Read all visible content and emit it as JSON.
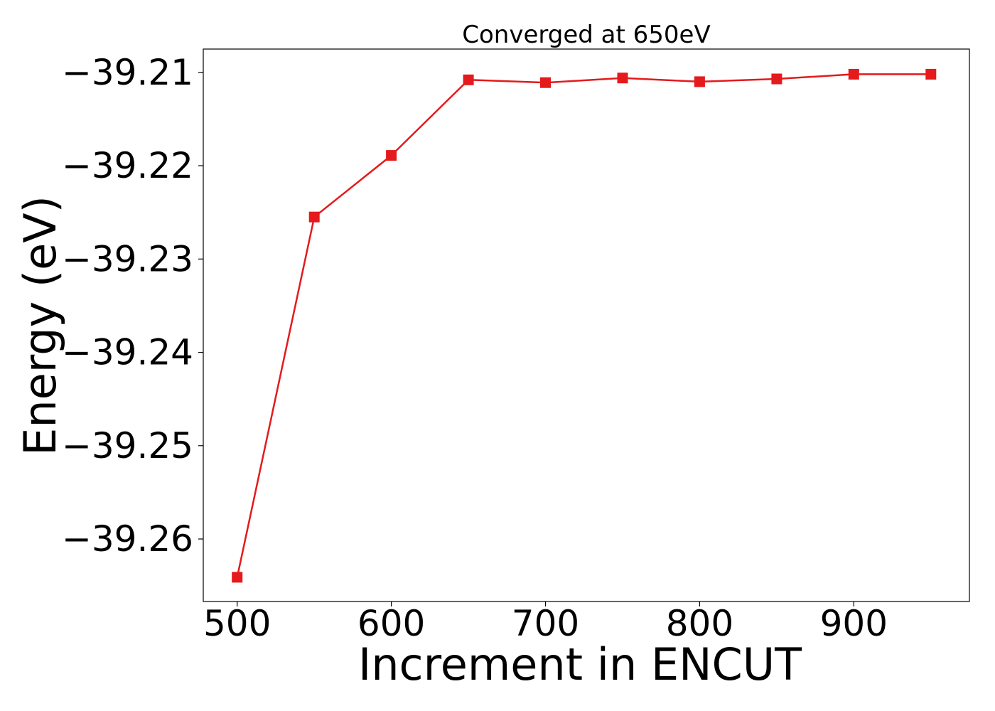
{
  "chart_data": {
    "type": "line",
    "title": "Converged at 650eV",
    "xlabel": "Increment in ENCUT",
    "ylabel": "Energy (eV)",
    "xlim": [
      478,
      975
    ],
    "ylim": [
      -39.2667,
      -39.2075
    ],
    "xticks": [
      500,
      600,
      700,
      800,
      900
    ],
    "xtick_labels": [
      "500",
      "600",
      "700",
      "800",
      "900"
    ],
    "yticks": [
      -39.26,
      -39.25,
      -39.24,
      -39.23,
      -39.22,
      -39.21
    ],
    "ytick_labels": [
      "−39.26",
      "−39.25",
      "−39.24",
      "−39.23",
      "−39.22",
      "−39.21"
    ],
    "grid": false,
    "legend": "none",
    "series": [
      {
        "color": "#e41a1c",
        "marker": "square",
        "x": [
          500,
          550,
          600,
          650,
          700,
          750,
          800,
          850,
          900,
          950
        ],
        "y": [
          -39.2641,
          -39.2255,
          -39.2189,
          -39.2108,
          -39.2111,
          -39.2106,
          -39.211,
          -39.2107,
          -39.2102,
          -39.2102
        ]
      }
    ]
  }
}
